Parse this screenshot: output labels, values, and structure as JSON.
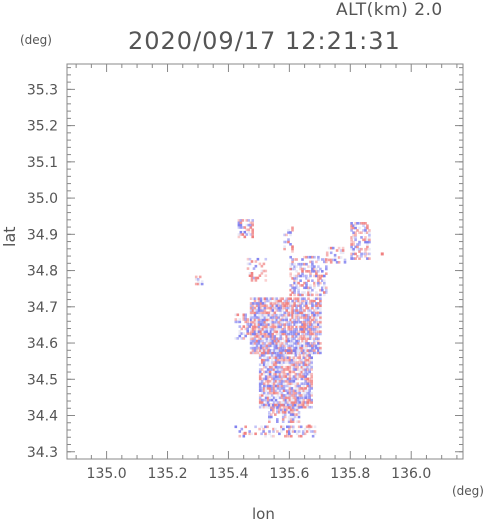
{
  "header": {
    "altitude_label": "ALT(km) 2.0",
    "timestamp": "2020/09/17 12:21:31"
  },
  "chart_data": {
    "type": "heatmap",
    "title": "2020/09/17 12:21:31",
    "subtitle": "ALT(km) 2.0",
    "xlabel": "lon",
    "ylabel": "lat",
    "x_unit": "(deg)",
    "y_unit": "(deg)",
    "xlim": [
      134.87,
      136.17
    ],
    "ylim": [
      34.28,
      35.37
    ],
    "xticks": [
      "135.0",
      "135.2",
      "135.4",
      "135.6",
      "135.8",
      "136.0"
    ],
    "yticks": [
      "34.3",
      "34.4",
      "34.5",
      "34.6",
      "34.7",
      "34.8",
      "34.9",
      "35.0",
      "35.1",
      "35.2",
      "35.3"
    ],
    "grid": false,
    "colors": {
      "positive": "#f08080",
      "negative": "#7f7fef",
      "axis": "#888888"
    },
    "regions": [
      {
        "lon": [
          135.47,
          135.7
        ],
        "lat": [
          34.57,
          34.72
        ],
        "density": 0.85
      },
      {
        "lon": [
          135.5,
          135.67
        ],
        "lat": [
          34.42,
          34.58
        ],
        "density": 0.85
      },
      {
        "lon": [
          135.53,
          135.63
        ],
        "lat": [
          34.38,
          34.43
        ],
        "density": 0.6
      },
      {
        "lon": [
          135.42,
          135.47
        ],
        "lat": [
          34.61,
          34.68
        ],
        "density": 0.4
      },
      {
        "lon": [
          135.6,
          135.72
        ],
        "lat": [
          34.73,
          34.84
        ],
        "density": 0.5
      },
      {
        "lon": [
          135.72,
          135.78
        ],
        "lat": [
          34.82,
          34.86
        ],
        "density": 0.35
      },
      {
        "lon": [
          135.8,
          135.86
        ],
        "lat": [
          34.83,
          34.93
        ],
        "density": 0.6
      },
      {
        "lon": [
          135.43,
          135.48
        ],
        "lat": [
          34.89,
          34.94
        ],
        "density": 0.45
      },
      {
        "lon": [
          135.46,
          135.52
        ],
        "lat": [
          34.77,
          34.83
        ],
        "density": 0.35
      },
      {
        "lon": [
          135.58,
          135.61
        ],
        "lat": [
          34.85,
          34.92
        ],
        "density": 0.35
      },
      {
        "lon": [
          135.42,
          135.68
        ],
        "lat": [
          34.34,
          34.37
        ],
        "density": 0.3
      },
      {
        "lon": [
          135.29,
          135.31
        ],
        "lat": [
          34.76,
          34.78
        ],
        "density": 0.8
      }
    ]
  }
}
